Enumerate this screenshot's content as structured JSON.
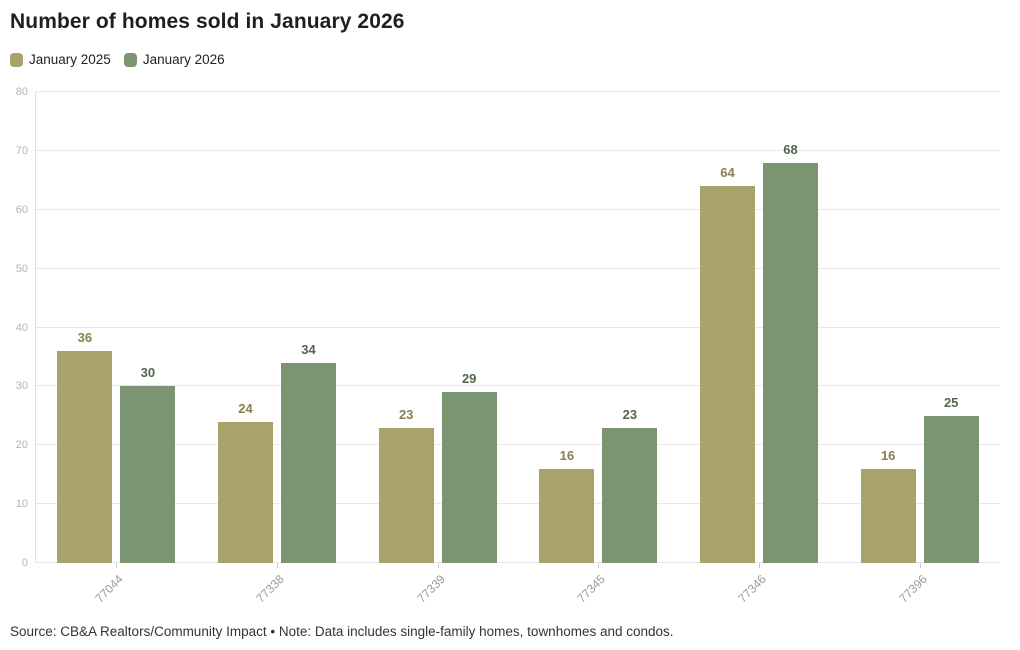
{
  "title": "Number of homes sold in January 2026",
  "chart_data": {
    "type": "bar",
    "title": "Number of homes sold in January 2026",
    "categories": [
      "77044",
      "77338",
      "77339",
      "77345",
      "77346",
      "77396"
    ],
    "series": [
      {
        "name": "January 2025",
        "color": "#a8a36b",
        "label_color": "#86804e",
        "values": [
          36,
          24,
          23,
          16,
          64,
          16
        ]
      },
      {
        "name": "January 2026",
        "color": "#7b9471",
        "label_color": "#53664d",
        "values": [
          30,
          34,
          29,
          23,
          68,
          25
        ]
      }
    ],
    "xlabel": "",
    "ylabel": "",
    "ylim": [
      0,
      80
    ],
    "yticks": [
      0,
      10,
      20,
      30,
      40,
      50,
      60,
      70,
      80
    ],
    "grid": true,
    "legend_position": "top-left"
  },
  "footer": {
    "source": "Source: CB&A Realtors/Community Impact • Note: Data includes single-family homes, townhomes and condos."
  }
}
